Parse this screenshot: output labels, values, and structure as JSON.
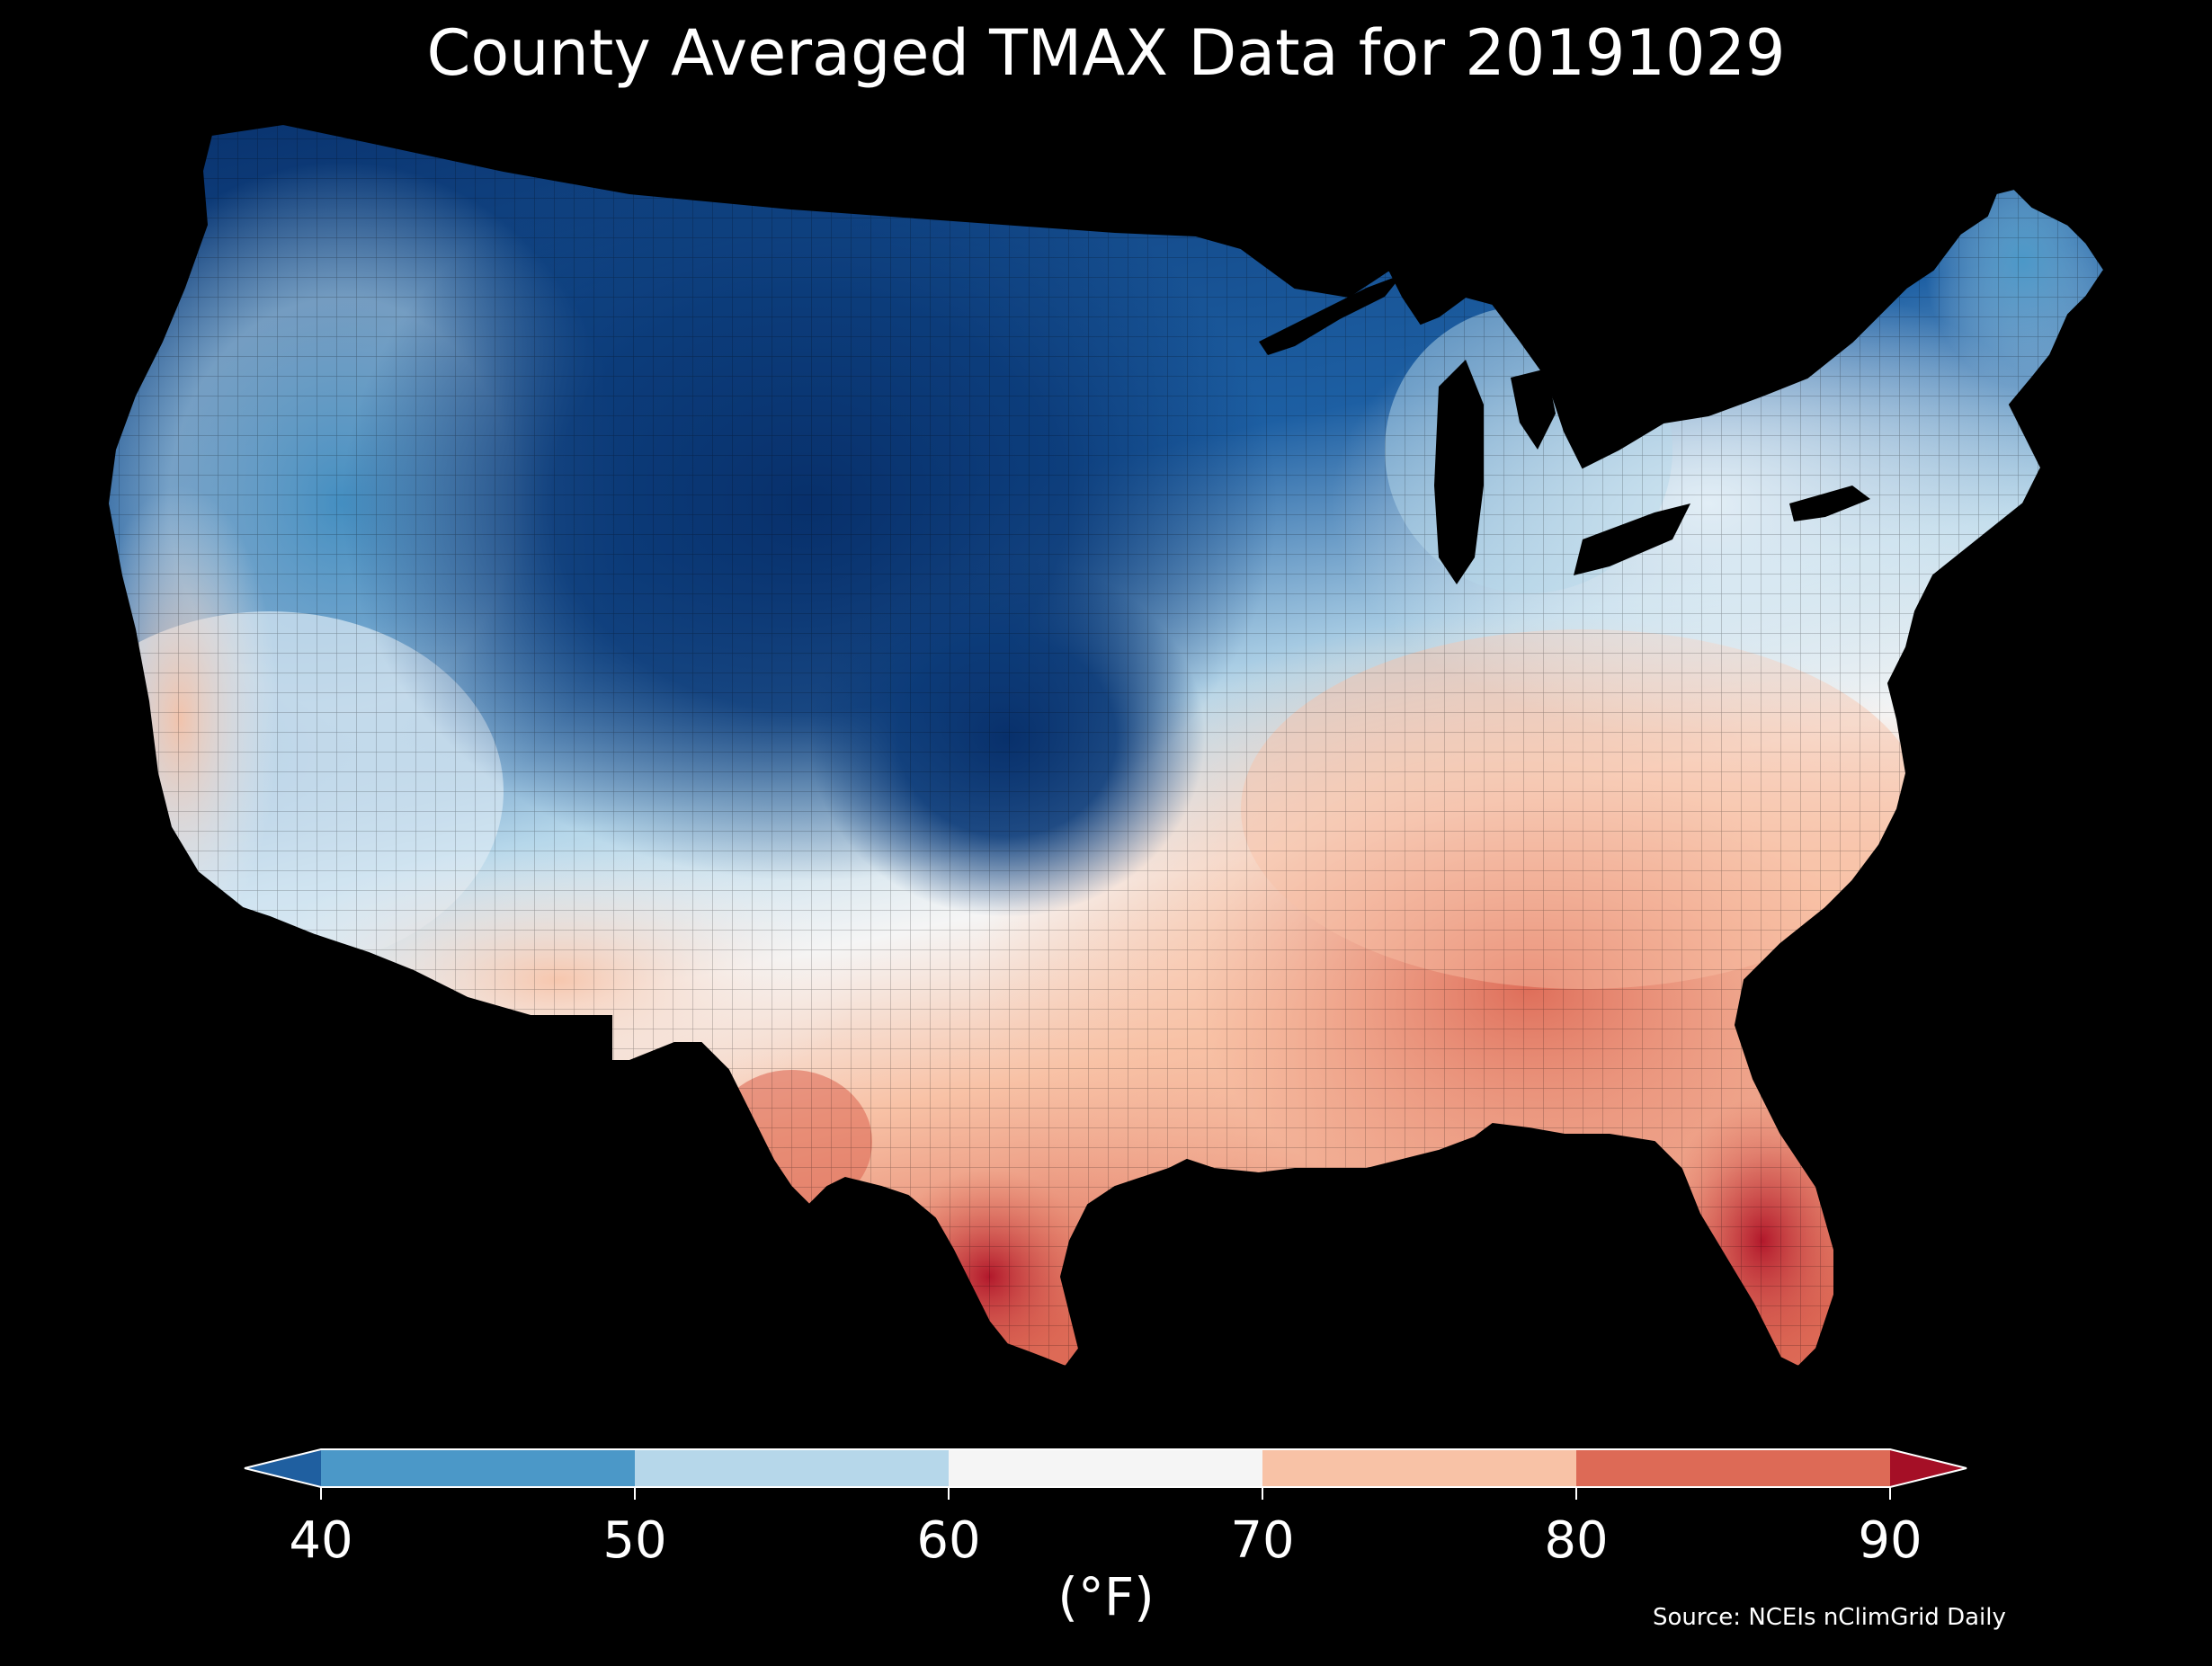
{
  "title": "County Averaged TMAX Data for 20191029",
  "source": "Source: NCEIs nClimGrid Daily",
  "map": {
    "region": "Contiguous United States (county level)",
    "variable": "TMAX",
    "regional_values_F": [
      {
        "region": "Pacific Northwest coast",
        "value": 55
      },
      {
        "region": "Interior Northwest",
        "value": 48
      },
      {
        "region": "Northern Rockies / High Plains",
        "value": 36
      },
      {
        "region": "Central Plains",
        "value": 42
      },
      {
        "region": "Upper Midwest",
        "value": 44
      },
      {
        "region": "Great Lakes",
        "value": 52
      },
      {
        "region": "Northeast",
        "value": 58
      },
      {
        "region": "Ohio Valley",
        "value": 66
      },
      {
        "region": "Southeast",
        "value": 78
      },
      {
        "region": "Florida",
        "value": 86
      },
      {
        "region": "South Texas",
        "value": 84
      },
      {
        "region": "Southwest",
        "value": 70
      },
      {
        "region": "California coast",
        "value": 67
      }
    ]
  },
  "colorbar": {
    "unit": "(°F)",
    "ticks": [
      "40",
      "50",
      "60",
      "70",
      "80",
      "90"
    ],
    "bins": [
      {
        "range": "<40",
        "color": "#1f5fa0"
      },
      {
        "range": "40-50",
        "color": "#4b98c8"
      },
      {
        "range": "50-60",
        "color": "#b6d7ea"
      },
      {
        "range": "60-70",
        "color": "#f5f5f5"
      },
      {
        "range": "70-80",
        "color": "#f8c2a6"
      },
      {
        "range": "80-90",
        "color": "#dd6a56"
      },
      {
        "range": ">90",
        "color": "#a50f26"
      }
    ]
  }
}
